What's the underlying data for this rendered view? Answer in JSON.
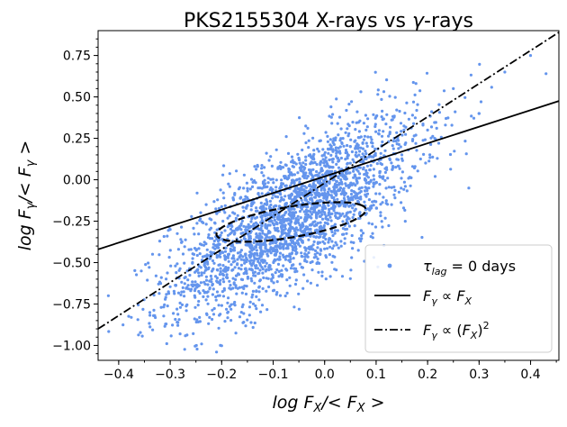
{
  "chart_data": {
    "type": "scatter",
    "title": "PKS2155304    X-rays vs γ-rays",
    "xlabel": "log F_X/<F_X>",
    "ylabel": "log F_γ/<F_γ>",
    "xlim": [
      -0.44,
      0.455
    ],
    "ylim": [
      -1.09,
      0.9
    ],
    "x_ticks": [
      -0.4,
      -0.3,
      -0.2,
      -0.1,
      0.0,
      0.1,
      0.2,
      0.3,
      0.4
    ],
    "x_tick_labels": [
      "−0.4",
      "−0.3",
      "−0.2",
      "−0.1",
      "0.0",
      "0.1",
      "0.2",
      "0.3",
      "0.4"
    ],
    "y_ticks": [
      0.75,
      0.5,
      0.25,
      0.0,
      -0.25,
      -0.5,
      -0.75,
      -1.0
    ],
    "y_tick_labels": [
      "0.75",
      "0.50",
      "0.25",
      "0.00",
      "−0.25",
      "−0.50",
      "−0.75",
      "−1.00"
    ],
    "grid": false,
    "legend_position": "lower-right",
    "colors": {
      "points": "#6495ed",
      "lines": "#000000"
    },
    "series": [
      {
        "name": "τ_lag = 0  days",
        "kind": "scatter",
        "n_points": 2600,
        "center": [
          -0.06,
          -0.22
        ],
        "x_range": [
          -0.42,
          0.43
        ],
        "y_range": [
          -1.04,
          0.8
        ],
        "sample_points": [
          [
            -0.42,
            -0.7
          ],
          [
            -0.33,
            -0.82
          ],
          [
            -0.3,
            -0.3
          ],
          [
            -0.23,
            -0.15
          ],
          [
            -0.2,
            -0.32
          ],
          [
            -0.13,
            0.08
          ],
          [
            -0.1,
            -0.35
          ],
          [
            -0.06,
            -0.22
          ],
          [
            0.0,
            -0.1
          ],
          [
            0.05,
            0.1
          ],
          [
            0.1,
            0.38
          ],
          [
            0.15,
            0.15
          ],
          [
            0.2,
            0.3
          ],
          [
            0.25,
            0.55
          ],
          [
            0.3,
            0.4
          ],
          [
            0.35,
            0.65
          ],
          [
            0.4,
            0.75
          ],
          [
            0.43,
            0.64
          ],
          [
            0.28,
            -0.05
          ],
          [
            -0.21,
            -1.04
          ]
        ]
      },
      {
        "name": "F_γ ∝ F_X",
        "kind": "line",
        "slope": 1,
        "intercept": 0.02
      },
      {
        "name": "F_γ ∝ (F_X)^2",
        "kind": "line",
        "slope": 2,
        "intercept": -0.02
      }
    ],
    "ellipse": {
      "center": [
        -0.065,
        -0.255
      ],
      "semi_major": 0.17,
      "semi_minor": 0.08,
      "angle_deg": 36.2,
      "style": "dashed"
    }
  }
}
